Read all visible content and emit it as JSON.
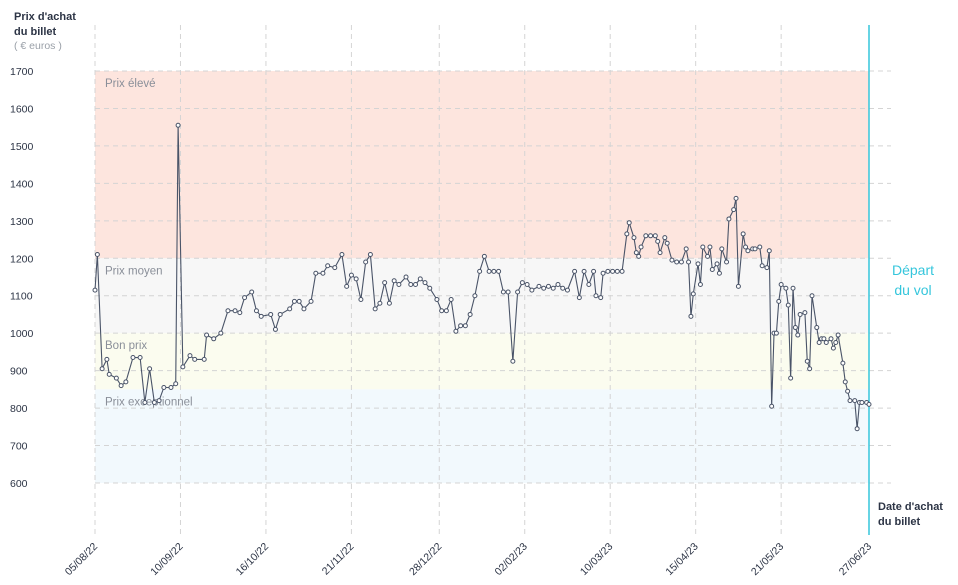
{
  "chart_data": {
    "type": "line",
    "y_label": [
      "Prix d'achat",
      "du billet"
    ],
    "y_unit": "( € euros )",
    "x_label": [
      "Date d'achat",
      "du billet"
    ],
    "departure_label": [
      "Départ",
      "du vol"
    ],
    "color": "#4a5468",
    "departure_color": "#35c6dc",
    "grid": true,
    "ylim": [
      500,
      1750
    ],
    "yticks": [
      600,
      700,
      800,
      900,
      1000,
      1100,
      1200,
      1300,
      1400,
      1500,
      1600,
      1700
    ],
    "xlim": [
      "2022-08-05",
      "2023-06-27"
    ],
    "xticks": [
      {
        "value": "2022-08-05",
        "label": "05/08/22"
      },
      {
        "value": "2022-09-10",
        "label": "10/09/22"
      },
      {
        "value": "2022-10-16",
        "label": "16/10/22"
      },
      {
        "value": "2022-11-21",
        "label": "21/11/22"
      },
      {
        "value": "2022-12-28",
        "label": "28/12/22"
      },
      {
        "value": "2023-02-02",
        "label": "02/02/23"
      },
      {
        "value": "2023-03-10",
        "label": "10/03/23"
      },
      {
        "value": "2023-04-15",
        "label": "15/04/23"
      },
      {
        "value": "2023-05-21",
        "label": "21/05/23"
      },
      {
        "value": "2023-06-27",
        "label": "27/06/23"
      }
    ],
    "bands": [
      {
        "name": "Prix élevé",
        "from": 1200,
        "to": 1700,
        "color": "#fde5de"
      },
      {
        "name": "Prix moyen",
        "from": 1000,
        "to": 1200,
        "color": "#f7f7f7"
      },
      {
        "name": "Bon prix",
        "from": 850,
        "to": 1000,
        "color": "#fbfcef"
      },
      {
        "name": "Prix exceptionnel",
        "from": 600,
        "to": 850,
        "color": "#f2f9fd"
      }
    ],
    "x": [
      "2022-08-05",
      "2022-08-06",
      "2022-08-08",
      "2022-08-10",
      "2022-08-11",
      "2022-08-14",
      "2022-08-16",
      "2022-08-18",
      "2022-08-21",
      "2022-08-24",
      "2022-08-26",
      "2022-08-28",
      "2022-08-30",
      "2022-09-01",
      "2022-09-03",
      "2022-09-06",
      "2022-09-08",
      "2022-09-09",
      "2022-09-11",
      "2022-09-14",
      "2022-09-16",
      "2022-09-20",
      "2022-09-21",
      "2022-09-24",
      "2022-09-27",
      "2022-09-30",
      "2022-10-03",
      "2022-10-05",
      "2022-10-07",
      "2022-10-10",
      "2022-10-12",
      "2022-10-14",
      "2022-10-18",
      "2022-10-20",
      "2022-10-22",
      "2022-10-26",
      "2022-10-28",
      "2022-10-30",
      "2022-11-01",
      "2022-11-04",
      "2022-11-06",
      "2022-11-09",
      "2022-11-11",
      "2022-11-14",
      "2022-11-17",
      "2022-11-19",
      "2022-11-21",
      "2022-11-23",
      "2022-11-25",
      "2022-11-27",
      "2022-11-29",
      "2022-12-01",
      "2022-12-03",
      "2022-12-05",
      "2022-12-07",
      "2022-12-09",
      "2022-12-11",
      "2022-12-14",
      "2022-12-16",
      "2022-12-18",
      "2022-12-20",
      "2022-12-22",
      "2022-12-24",
      "2022-12-27",
      "2022-12-29",
      "2022-12-31",
      "2023-01-02",
      "2023-01-04",
      "2023-01-06",
      "2023-01-08",
      "2023-01-10",
      "2023-01-12",
      "2023-01-14",
      "2023-01-16",
      "2023-01-18",
      "2023-01-20",
      "2023-01-22",
      "2023-01-24",
      "2023-01-26",
      "2023-01-28",
      "2023-01-30",
      "2023-02-01",
      "2023-02-03",
      "2023-02-05",
      "2023-02-08",
      "2023-02-10",
      "2023-02-12",
      "2023-02-14",
      "2023-02-16",
      "2023-02-18",
      "2023-02-20",
      "2023-02-23",
      "2023-02-25",
      "2023-02-27",
      "2023-03-01",
      "2023-03-03",
      "2023-03-04",
      "2023-03-06",
      "2023-03-07",
      "2023-03-09",
      "2023-03-11",
      "2023-03-13",
      "2023-03-15",
      "2023-03-17",
      "2023-03-18",
      "2023-03-20",
      "2023-03-21",
      "2023-03-22",
      "2023-03-23",
      "2023-03-25",
      "2023-03-27",
      "2023-03-29",
      "2023-03-30",
      "2023-03-31",
      "2023-04-02",
      "2023-04-03",
      "2023-04-05",
      "2023-04-07",
      "2023-04-09",
      "2023-04-11",
      "2023-04-12",
      "2023-04-13",
      "2023-04-14",
      "2023-04-16",
      "2023-04-17",
      "2023-04-18",
      "2023-04-20",
      "2023-04-21",
      "2023-04-22",
      "2023-04-24",
      "2023-04-25",
      "2023-04-26",
      "2023-04-28",
      "2023-04-29",
      "2023-05-01",
      "2023-05-02",
      "2023-05-03",
      "2023-05-05",
      "2023-05-06",
      "2023-05-07",
      "2023-05-09",
      "2023-05-10",
      "2023-05-12",
      "2023-05-13",
      "2023-05-15",
      "2023-05-16",
      "2023-05-17",
      "2023-05-18",
      "2023-05-19",
      "2023-05-20",
      "2023-05-21",
      "2023-05-23",
      "2023-05-24",
      "2023-05-25",
      "2023-05-26",
      "2023-05-27",
      "2023-05-28",
      "2023-05-29",
      "2023-05-31",
      "2023-06-01",
      "2023-06-02",
      "2023-06-03",
      "2023-06-05",
      "2023-06-06",
      "2023-06-07",
      "2023-06-08",
      "2023-06-09",
      "2023-06-11",
      "2023-06-12",
      "2023-06-13",
      "2023-06-14",
      "2023-06-16",
      "2023-06-17",
      "2023-06-18",
      "2023-06-19",
      "2023-06-21",
      "2023-06-22",
      "2023-06-23",
      "2023-06-24",
      "2023-06-26",
      "2023-06-27"
    ],
    "values": [
      1115,
      1210,
      905,
      930,
      890,
      880,
      860,
      870,
      935,
      935,
      815,
      905,
      815,
      820,
      855,
      855,
      865,
      1555,
      910,
      940,
      930,
      930,
      995,
      985,
      1000,
      1060,
      1060,
      1055,
      1095,
      1110,
      1060,
      1045,
      1050,
      1010,
      1050,
      1065,
      1085,
      1085,
      1065,
      1085,
      1160,
      1160,
      1180,
      1175,
      1210,
      1125,
      1155,
      1145,
      1090,
      1190,
      1210,
      1065,
      1080,
      1135,
      1080,
      1140,
      1130,
      1150,
      1130,
      1130,
      1145,
      1135,
      1120,
      1090,
      1060,
      1060,
      1090,
      1005,
      1020,
      1020,
      1050,
      1100,
      1165,
      1205,
      1165,
      1165,
      1165,
      1110,
      1110,
      925,
      1110,
      1135,
      1130,
      1115,
      1125,
      1120,
      1125,
      1120,
      1130,
      1120,
      1115,
      1165,
      1095,
      1165,
      1130,
      1165,
      1100,
      1095,
      1160,
      1165,
      1165,
      1165,
      1165,
      1265,
      1295,
      1255,
      1215,
      1205,
      1230,
      1260,
      1260,
      1260,
      1245,
      1215,
      1255,
      1240,
      1195,
      1190,
      1190,
      1225,
      1190,
      1045,
      1105,
      1185,
      1130,
      1230,
      1205,
      1230,
      1170,
      1185,
      1160,
      1225,
      1190,
      1305,
      1330,
      1360,
      1125,
      1265,
      1230,
      1220,
      1225,
      1225,
      1230,
      1180,
      1175,
      1220,
      805,
      1000,
      1000,
      1085,
      1130,
      1120,
      1075,
      880,
      1120,
      1015,
      995,
      1050,
      1055,
      925,
      905,
      1100,
      1015,
      975,
      985,
      985,
      975,
      985,
      960,
      975,
      995,
      920,
      870,
      845,
      820,
      820,
      745,
      815,
      815,
      815,
      810
    ]
  }
}
